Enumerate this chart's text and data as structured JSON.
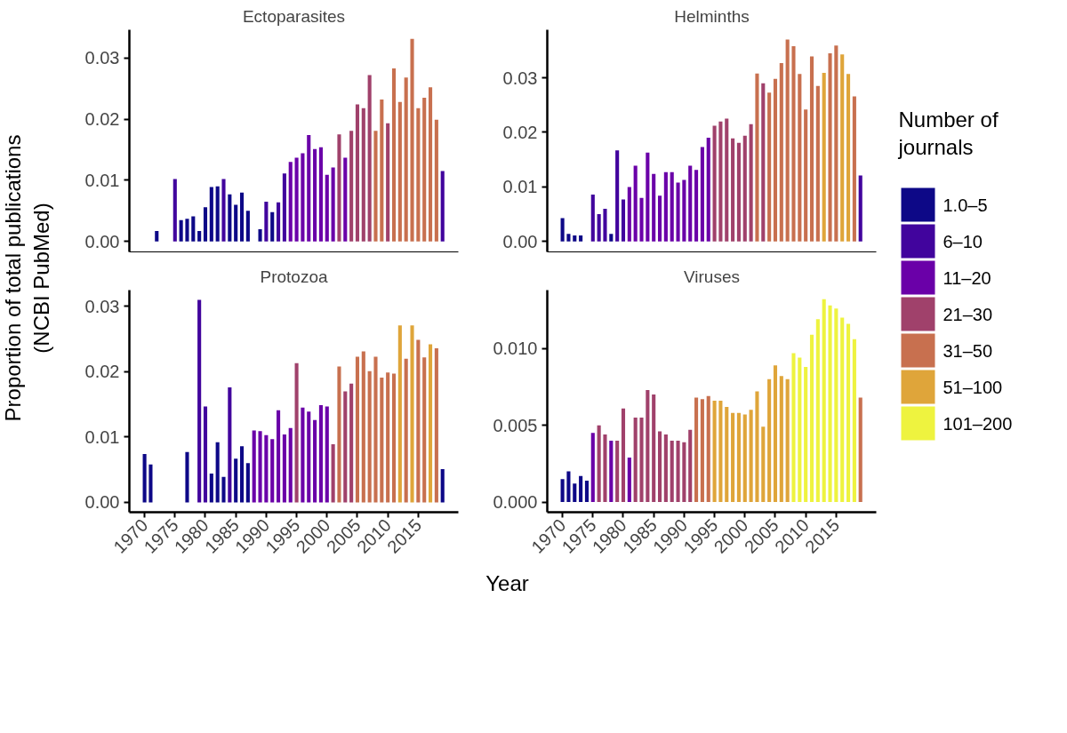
{
  "chart_data": [
    {
      "type": "bar",
      "title": "Ectoparasites",
      "ylabel": "Proportion of total publications\n(NCBI PubMed)",
      "legend": "right",
      "legend_title": "Number of\njournals",
      "xlim": [
        1967.5,
        2021.6
      ],
      "ylim": [
        -0.0017,
        0.0346
      ],
      "yticks": [
        {
          "value": 0,
          "label": "0.00"
        },
        {
          "value": 0.01,
          "label": "0.01"
        },
        {
          "value": 0.02,
          "label": "0.02"
        },
        {
          "value": 0.03,
          "label": "0.03"
        }
      ],
      "tick_labels": "y",
      "grid": false,
      "series": [
        {
          "name": "1.0–5",
          "color": "#0d0887",
          "x": [
            1972,
            1976,
            1977,
            1978,
            1979,
            1980,
            1981,
            1982,
            1984,
            1985,
            1986,
            1987,
            1989,
            1991
          ],
          "values": [
            0.0017,
            0.0035,
            0.0037,
            0.0041,
            0.0017,
            0.0056,
            0.0089,
            0.009,
            0.0077,
            0.006,
            0.008,
            0.005,
            0.002,
            0.0048
          ]
        },
        {
          "name": "6–10",
          "color": "#41049d",
          "x": [
            1975,
            1983,
            1990,
            1992,
            1993,
            2019
          ],
          "values": [
            0.0102,
            0.0102,
            0.0065,
            0.0064,
            0.0111,
            0.0115
          ]
        },
        {
          "name": "11–20",
          "color": "#6a00a8",
          "x": [
            1994,
            1995,
            1996,
            1997,
            1998,
            1999,
            2000,
            2001,
            2003
          ],
          "values": [
            0.013,
            0.0137,
            0.0144,
            0.0174,
            0.0151,
            0.0154,
            0.0109,
            0.0121,
            0.0137
          ]
        },
        {
          "name": "21–30",
          "color": "#a0416b",
          "x": [
            2002,
            2004,
            2005,
            2006,
            2007,
            2010
          ],
          "values": [
            0.0175,
            0.0181,
            0.0224,
            0.0218,
            0.0272,
            0.0193
          ]
        },
        {
          "name": "31–50",
          "color": "#c8704f",
          "x": [
            2008,
            2009,
            2011,
            2012,
            2013,
            2014,
            2015,
            2016,
            2017,
            2018
          ],
          "values": [
            0.0181,
            0.0232,
            0.0283,
            0.0228,
            0.0268,
            0.0331,
            0.0218,
            0.0235,
            0.0252,
            0.0199
          ]
        }
      ]
    },
    {
      "type": "bar",
      "title": "Helminths",
      "xlim": [
        1967.5,
        2021.6
      ],
      "ylim": [
        -0.0019,
        0.0388
      ],
      "yticks": [
        {
          "value": 0,
          "label": "0.00"
        },
        {
          "value": 0.01,
          "label": "0.01"
        },
        {
          "value": 0.02,
          "label": "0.02"
        },
        {
          "value": 0.03,
          "label": "0.03"
        }
      ],
      "tick_labels": "y",
      "grid": false,
      "series": [
        {
          "name": "1.0–5",
          "color": "#0d0887",
          "x": [
            1970,
            1971,
            1972,
            1973,
            1978
          ],
          "values": [
            0.0043,
            0.0014,
            0.0011,
            0.0011,
            0.0014
          ]
        },
        {
          "name": "6–10",
          "color": "#41049d",
          "x": [
            1975,
            1976,
            1977,
            1979,
            1980,
            2019
          ],
          "values": [
            0.0086,
            0.005,
            0.006,
            0.0167,
            0.0077,
            0.0121
          ]
        },
        {
          "name": "11–20",
          "color": "#6a00a8",
          "x": [
            1981,
            1982,
            1983,
            1984,
            1985,
            1986,
            1987,
            1988,
            1989,
            1990,
            1991,
            1992,
            1993,
            1994
          ],
          "values": [
            0.01,
            0.0139,
            0.008,
            0.0163,
            0.0124,
            0.0084,
            0.0127,
            0.0127,
            0.0108,
            0.0113,
            0.0139,
            0.0131,
            0.0173,
            0.019
          ]
        },
        {
          "name": "21–30",
          "color": "#a0416b",
          "x": [
            1995,
            1996,
            1997,
            1998,
            1999,
            2000,
            2001,
            2003
          ],
          "values": [
            0.0212,
            0.022,
            0.0225,
            0.0189,
            0.0181,
            0.0194,
            0.0215,
            0.029
          ]
        },
        {
          "name": "31–50",
          "color": "#c8704f",
          "x": [
            2002,
            2004,
            2005,
            2006,
            2007,
            2008,
            2009,
            2010,
            2011,
            2012,
            2014,
            2015,
            2018
          ],
          "values": [
            0.0308,
            0.0273,
            0.0298,
            0.0327,
            0.037,
            0.0358,
            0.0307,
            0.0242,
            0.0339,
            0.0285,
            0.0345,
            0.0359,
            0.0266
          ]
        },
        {
          "name": "51–100",
          "color": "#dfa53a",
          "x": [
            2013,
            2016,
            2017
          ],
          "values": [
            0.0309,
            0.0343,
            0.0307
          ]
        }
      ]
    },
    {
      "type": "bar",
      "title": "Protozoa",
      "xlabel": "Year",
      "xlim": [
        1967.5,
        2021.6
      ],
      "xticks": [
        1970,
        1975,
        1980,
        1985,
        1990,
        1995,
        2000,
        2005,
        2010,
        2015
      ],
      "ylim": [
        -0.0015,
        0.0325
      ],
      "yticks": [
        {
          "value": 0,
          "label": "0.00"
        },
        {
          "value": 0.01,
          "label": "0.01"
        },
        {
          "value": 0.02,
          "label": "0.02"
        },
        {
          "value": 0.03,
          "label": "0.03"
        }
      ],
      "grid": false,
      "series": [
        {
          "name": "1.0–5",
          "color": "#0d0887",
          "x": [
            1970,
            1971,
            1977,
            1981,
            1982,
            1983,
            1985,
            1986,
            1987,
            2019
          ],
          "values": [
            0.0074,
            0.0058,
            0.0077,
            0.0044,
            0.0092,
            0.0039,
            0.0067,
            0.0086,
            0.006,
            0.0051
          ]
        },
        {
          "name": "6–10",
          "color": "#41049d",
          "x": [
            1979,
            1980,
            1984
          ],
          "values": [
            0.031,
            0.0147,
            0.0176
          ]
        },
        {
          "name": "11–20",
          "color": "#6a00a8",
          "x": [
            1988,
            1989,
            1990,
            1991,
            1992,
            1993,
            1994,
            1996,
            1997,
            1998,
            1999,
            2000
          ],
          "values": [
            0.011,
            0.0109,
            0.0103,
            0.0097,
            0.0141,
            0.0104,
            0.0114,
            0.0145,
            0.0139,
            0.0126,
            0.0149,
            0.0147
          ]
        },
        {
          "name": "21–30",
          "color": "#a0416b",
          "x": [
            1995,
            2001,
            2003,
            2004
          ],
          "values": [
            0.0213,
            0.0089,
            0.017,
            0.0182
          ]
        },
        {
          "name": "31–50",
          "color": "#c8704f",
          "x": [
            2002,
            2005,
            2006,
            2007,
            2008,
            2009,
            2010,
            2011,
            2013,
            2015,
            2016,
            2018
          ],
          "values": [
            0.0208,
            0.0223,
            0.0231,
            0.0201,
            0.0223,
            0.0191,
            0.0199,
            0.0197,
            0.022,
            0.0249,
            0.0222,
            0.0236
          ]
        },
        {
          "name": "51–100",
          "color": "#dfa53a",
          "x": [
            2012,
            2014,
            2017
          ],
          "values": [
            0.0271,
            0.0271,
            0.0242
          ]
        }
      ]
    },
    {
      "type": "bar",
      "title": "Viruses",
      "xlim": [
        1967.5,
        2021.6
      ],
      "xticks": [
        1970,
        1975,
        1980,
        1985,
        1990,
        1995,
        2000,
        2005,
        2010,
        2015
      ],
      "ylim": [
        -0.00066,
        0.0138
      ],
      "yticks": [
        {
          "value": 0,
          "label": "0.000"
        },
        {
          "value": 0.005,
          "label": "0.005"
        },
        {
          "value": 0.01,
          "label": "0.010"
        }
      ],
      "grid": false,
      "series": [
        {
          "name": "1.0–5",
          "color": "#0d0887",
          "x": [
            1970,
            1971,
            1972,
            1973,
            1974
          ],
          "values": [
            0.0015,
            0.002,
            0.0012,
            0.0017,
            0.0014
          ]
        },
        {
          "name": "11–20",
          "color": "#6a00a8",
          "x": [
            1975,
            1978,
            1981
          ],
          "values": [
            0.0045,
            0.004,
            0.0029
          ]
        },
        {
          "name": "21–30",
          "color": "#a0416b",
          "x": [
            1976,
            1977,
            1979,
            1980,
            1982,
            1983,
            1984,
            1985,
            1986,
            1987,
            1988,
            1989,
            1990,
            1991
          ],
          "values": [
            0.005,
            0.0044,
            0.004,
            0.0061,
            0.0055,
            0.0055,
            0.0073,
            0.007,
            0.0046,
            0.0044,
            0.004,
            0.004,
            0.0039,
            0.0047
          ]
        },
        {
          "name": "31–50",
          "color": "#c8704f",
          "x": [
            1992,
            1993,
            1994,
            2019
          ],
          "values": [
            0.0068,
            0.0067,
            0.0069,
            0.0068
          ]
        },
        {
          "name": "51–100",
          "color": "#dfa53a",
          "x": [
            1995,
            1996,
            1997,
            1998,
            1999,
            2000,
            2001,
            2002,
            2003,
            2004,
            2005,
            2006,
            2007
          ],
          "values": [
            0.0066,
            0.0066,
            0.0062,
            0.0058,
            0.0058,
            0.0057,
            0.006,
            0.0072,
            0.0049,
            0.008,
            0.0089,
            0.0082,
            0.008
          ]
        },
        {
          "name": "101–200",
          "color": "#eef33f",
          "x": [
            2008,
            2009,
            2010,
            2011,
            2012,
            2013,
            2014,
            2015,
            2016,
            2017,
            2018
          ],
          "values": [
            0.0097,
            0.0094,
            0.0088,
            0.0109,
            0.0119,
            0.0132,
            0.0128,
            0.0126,
            0.012,
            0.0116,
            0.0106
          ]
        }
      ]
    }
  ]
}
